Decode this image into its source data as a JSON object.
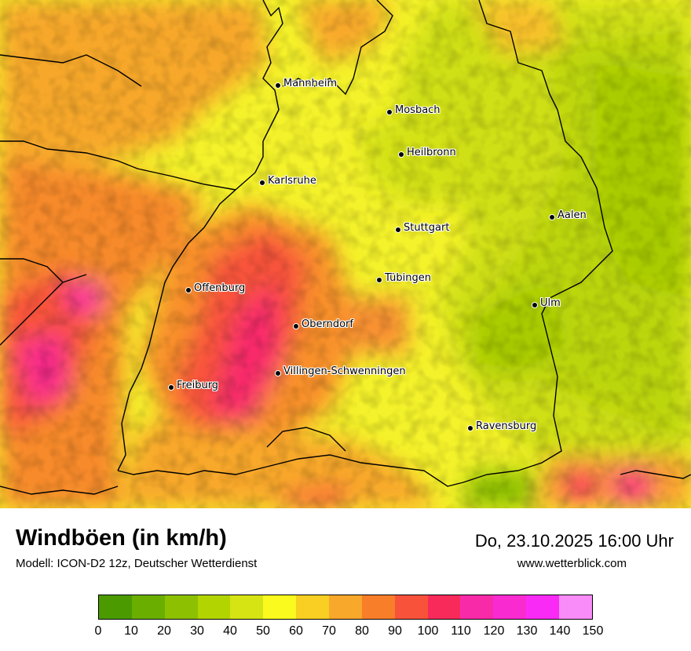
{
  "title": "Windböen (in km/h)",
  "subtitle": "Modell: ICON-D2 12z, Deutscher Wetterdienst",
  "datetime": "Do, 23.10.2025 16:00 Uhr",
  "website": "www.wetterblick.com",
  "legend": {
    "ticks": [
      "0",
      "10",
      "20",
      "30",
      "40",
      "50",
      "60",
      "70",
      "80",
      "90",
      "100",
      "110",
      "120",
      "130",
      "140",
      "150"
    ],
    "colors": [
      "#4a9a00",
      "#6aae00",
      "#8cc000",
      "#b2d400",
      "#d6e414",
      "#fafa1e",
      "#f8cf22",
      "#f8a82a",
      "#f87e2a",
      "#f8523a",
      "#f82a5a",
      "#f82aa8",
      "#f82ad0",
      "#fa2af6",
      "#fa8cfa"
    ]
  },
  "cities": [
    {
      "name": "Mannheim"
    },
    {
      "name": "Mosbach"
    },
    {
      "name": "Heilbronn"
    },
    {
      "name": "Karlsruhe"
    },
    {
      "name": "Stuttgart"
    },
    {
      "name": "Aalen"
    },
    {
      "name": "Tübingen"
    },
    {
      "name": "Offenburg"
    },
    {
      "name": "Ulm"
    },
    {
      "name": "Oberndorf"
    },
    {
      "name": "Villingen-Schwenningen"
    },
    {
      "name": "Freiburg"
    },
    {
      "name": "Ravensburg"
    }
  ]
}
